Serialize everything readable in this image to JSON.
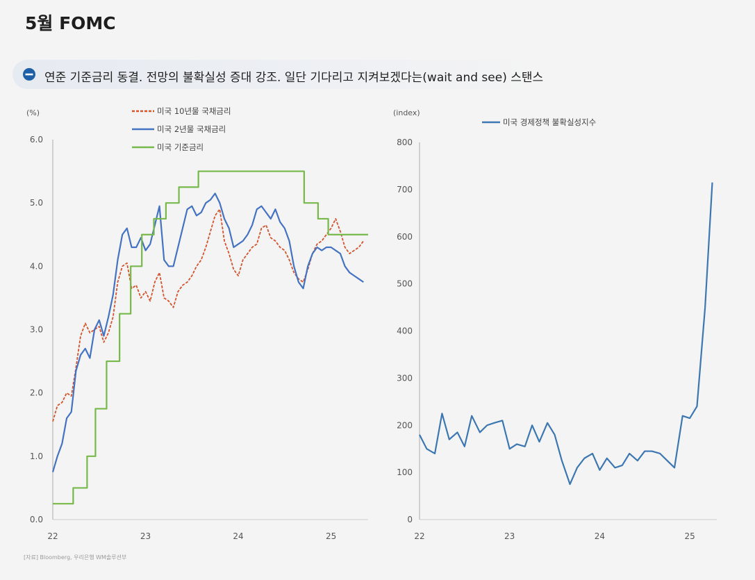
{
  "page": {
    "title": "5월 FOMC",
    "banner": "연준 기준금리 동결. 전망의 불확실성 증대 강조. 일단 기다리고 지켜보겠다는(wait and see) 스탠스",
    "source": "[자료] Bloomberg, 우리은행 WM솔루션부"
  },
  "colors": {
    "ten_year": "#d9532c",
    "two_year": "#4472c4",
    "policy": "#77b84a",
    "epu": "#3c77b3",
    "banner_icon": "#1f5fa8"
  },
  "chart_data": [
    {
      "type": "line",
      "unit_label": "(%)",
      "ylim": [
        0,
        6
      ],
      "yticks": [
        "0.0",
        "1.0",
        "2.0",
        "3.0",
        "4.0",
        "5.0",
        "6.0"
      ],
      "xlim": [
        2022.0,
        2025.4
      ],
      "xticks": [
        "22",
        "23",
        "24",
        "25"
      ],
      "grid": false,
      "legend_position": "top",
      "series": [
        {
          "name": "미국 10년물 국채금리",
          "style": "dashed",
          "x": [
            2022.0,
            2022.05,
            2022.1,
            2022.15,
            2022.2,
            2022.25,
            2022.3,
            2022.35,
            2022.4,
            2022.45,
            2022.5,
            2022.55,
            2022.6,
            2022.65,
            2022.7,
            2022.75,
            2022.8,
            2022.85,
            2022.9,
            2022.95,
            2023.0,
            2023.05,
            2023.1,
            2023.15,
            2023.2,
            2023.25,
            2023.3,
            2023.35,
            2023.4,
            2023.45,
            2023.5,
            2023.55,
            2023.6,
            2023.65,
            2023.7,
            2023.75,
            2023.8,
            2023.85,
            2023.9,
            2023.95,
            2024.0,
            2024.05,
            2024.1,
            2024.15,
            2024.2,
            2024.25,
            2024.3,
            2024.35,
            2024.4,
            2024.45,
            2024.5,
            2024.55,
            2024.6,
            2024.65,
            2024.7,
            2024.75,
            2024.8,
            2024.85,
            2024.9,
            2024.95,
            2025.0,
            2025.05,
            2025.1,
            2025.15,
            2025.2,
            2025.25,
            2025.3,
            2025.35
          ],
          "values": [
            1.55,
            1.8,
            1.85,
            2.0,
            1.95,
            2.4,
            2.9,
            3.1,
            2.95,
            3.0,
            3.05,
            2.8,
            2.95,
            3.2,
            3.75,
            4.0,
            4.05,
            3.65,
            3.7,
            3.5,
            3.6,
            3.45,
            3.75,
            3.9,
            3.5,
            3.45,
            3.35,
            3.6,
            3.7,
            3.75,
            3.85,
            4.0,
            4.1,
            4.3,
            4.55,
            4.8,
            4.9,
            4.4,
            4.2,
            3.95,
            3.85,
            4.1,
            4.2,
            4.3,
            4.35,
            4.6,
            4.65,
            4.45,
            4.4,
            4.3,
            4.25,
            4.1,
            3.9,
            3.8,
            3.75,
            3.95,
            4.2,
            4.35,
            4.4,
            4.5,
            4.6,
            4.75,
            4.55,
            4.3,
            4.2,
            4.25,
            4.3,
            4.4
          ]
        },
        {
          "name": "미국 2년물 국채금리",
          "style": "solid",
          "x": [
            2022.0,
            2022.05,
            2022.1,
            2022.15,
            2022.2,
            2022.25,
            2022.3,
            2022.35,
            2022.4,
            2022.45,
            2022.5,
            2022.55,
            2022.6,
            2022.65,
            2022.7,
            2022.75,
            2022.8,
            2022.85,
            2022.9,
            2022.95,
            2023.0,
            2023.05,
            2023.1,
            2023.15,
            2023.2,
            2023.25,
            2023.3,
            2023.35,
            2023.4,
            2023.45,
            2023.5,
            2023.55,
            2023.6,
            2023.65,
            2023.7,
            2023.75,
            2023.8,
            2023.85,
            2023.9,
            2023.95,
            2024.0,
            2024.05,
            2024.1,
            2024.15,
            2024.2,
            2024.25,
            2024.3,
            2024.35,
            2024.4,
            2024.45,
            2024.5,
            2024.55,
            2024.6,
            2024.65,
            2024.7,
            2024.75,
            2024.8,
            2024.85,
            2024.9,
            2024.95,
            2025.0,
            2025.05,
            2025.1,
            2025.15,
            2025.2,
            2025.25,
            2025.3,
            2025.35
          ],
          "values": [
            0.75,
            1.0,
            1.2,
            1.6,
            1.7,
            2.35,
            2.6,
            2.7,
            2.55,
            3.0,
            3.15,
            2.9,
            3.2,
            3.55,
            4.1,
            4.5,
            4.6,
            4.3,
            4.3,
            4.45,
            4.25,
            4.35,
            4.65,
            4.95,
            4.1,
            4.0,
            4.0,
            4.3,
            4.6,
            4.9,
            4.95,
            4.8,
            4.85,
            5.0,
            5.05,
            5.15,
            5.0,
            4.75,
            4.6,
            4.3,
            4.35,
            4.4,
            4.5,
            4.65,
            4.9,
            4.95,
            4.85,
            4.75,
            4.9,
            4.7,
            4.6,
            4.4,
            4.0,
            3.75,
            3.65,
            4.0,
            4.2,
            4.3,
            4.25,
            4.3,
            4.3,
            4.25,
            4.2,
            4.0,
            3.9,
            3.85,
            3.8,
            3.75
          ]
        },
        {
          "name": "미국 기준금리",
          "style": "step",
          "x": [
            2022.0,
            2022.22,
            2022.37,
            2022.46,
            2022.58,
            2022.72,
            2022.84,
            2022.96,
            2023.09,
            2023.22,
            2023.36,
            2023.57,
            2024.71,
            2024.86,
            2024.97,
            2025.4
          ],
          "values": [
            0.25,
            0.5,
            1.0,
            1.75,
            2.5,
            3.25,
            4.0,
            4.5,
            4.75,
            5.0,
            5.25,
            5.5,
            5.0,
            4.75,
            4.5,
            4.5
          ]
        }
      ]
    },
    {
      "type": "line",
      "unit_label": "(index)",
      "ylim": [
        0,
        800
      ],
      "yticks": [
        "0",
        "100",
        "200",
        "300",
        "400",
        "500",
        "600",
        "700",
        "800"
      ],
      "xlim": [
        2022.0,
        2025.3
      ],
      "xticks": [
        "22",
        "23",
        "24",
        "25"
      ],
      "grid": false,
      "legend_position": "top",
      "series": [
        {
          "name": "미국 경제정책 불확실성지수",
          "style": "solid",
          "x": [
            2022.0,
            2022.08,
            2022.17,
            2022.25,
            2022.33,
            2022.42,
            2022.5,
            2022.58,
            2022.67,
            2022.75,
            2022.83,
            2022.92,
            2023.0,
            2023.08,
            2023.17,
            2023.25,
            2023.33,
            2023.42,
            2023.5,
            2023.58,
            2023.67,
            2023.75,
            2023.83,
            2023.92,
            2024.0,
            2024.08,
            2024.17,
            2024.25,
            2024.33,
            2024.42,
            2024.5,
            2024.58,
            2024.67,
            2024.75,
            2024.83,
            2024.92,
            2025.0,
            2025.08,
            2025.17,
            2025.25
          ],
          "values": [
            180,
            150,
            140,
            225,
            170,
            185,
            155,
            220,
            185,
            200,
            205,
            210,
            150,
            160,
            155,
            200,
            165,
            205,
            180,
            125,
            75,
            110,
            130,
            140,
            105,
            130,
            110,
            115,
            140,
            125,
            145,
            145,
            140,
            125,
            110,
            220,
            215,
            240,
            450,
            715
          ]
        }
      ]
    }
  ]
}
